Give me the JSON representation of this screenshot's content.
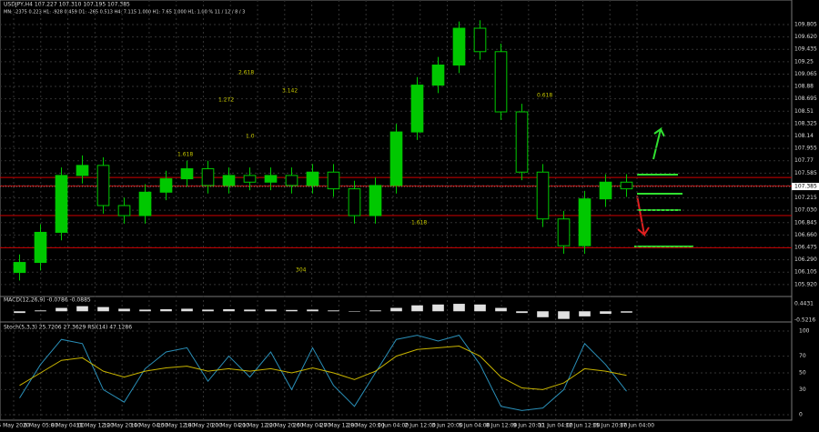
{
  "chart_data": [
    {
      "type": "candlestick",
      "title": "USDJPY,H4 107.227 107.310 107.195 107.385",
      "subtitle": "MN: -2375 0.223 H1: -928 0.459 D1: -265 0.513 H4: 7.115 1.000 H1: 7.65 1.000 H1: 1.00 % 11 / 12 / 8 / 3",
      "open": [
        106.1,
        106.25,
        106.7,
        107.55,
        107.7,
        107.1,
        106.95,
        107.3,
        107.5,
        107.65,
        107.4,
        107.55,
        107.45,
        107.55,
        107.4,
        107.6,
        107.35,
        106.95,
        107.4,
        108.2,
        108.9,
        109.2,
        109.75,
        109.4,
        108.5,
        107.6,
        106.9,
        106.5,
        107.2,
        107.45
      ],
      "high": [
        106.37,
        106.82,
        107.67,
        107.85,
        107.82,
        107.22,
        107.42,
        107.62,
        107.77,
        107.77,
        107.67,
        107.67,
        107.67,
        107.67,
        107.72,
        107.72,
        107.47,
        107.52,
        108.32,
        109.02,
        109.32,
        109.85,
        109.87,
        109.52,
        108.62,
        107.72,
        107.02,
        107.32,
        107.57,
        107.57
      ],
      "low": [
        105.98,
        106.13,
        106.58,
        107.43,
        106.98,
        106.83,
        106.83,
        107.18,
        107.38,
        107.28,
        107.28,
        107.33,
        107.33,
        107.28,
        107.28,
        107.23,
        106.83,
        106.83,
        107.28,
        108.08,
        108.78,
        109.08,
        109.28,
        108.38,
        107.48,
        106.78,
        106.38,
        106.38,
        107.08,
        107.23
      ],
      "close": [
        106.25,
        106.7,
        107.55,
        107.7,
        107.1,
        106.95,
        107.3,
        107.5,
        107.65,
        107.4,
        107.55,
        107.45,
        107.55,
        107.4,
        107.6,
        107.35,
        106.95,
        107.4,
        108.2,
        108.9,
        109.2,
        109.75,
        109.4,
        108.5,
        107.6,
        106.9,
        106.5,
        107.2,
        107.45,
        107.35
      ],
      "color": "#00c800",
      "levels": [
        {
          "value": 107.52,
          "color": "#d00000"
        },
        {
          "value": 107.39,
          "color": "#d00000"
        },
        {
          "value": 106.95,
          "color": "#d00000"
        },
        {
          "value": 106.47,
          "color": "#d00000"
        }
      ],
      "last_price": {
        "value": 107.385,
        "label": "107.385"
      },
      "annotations": [
        "1.272",
        "1.618",
        "2.618",
        "3.142",
        "1.0",
        "0.618",
        "1.618",
        "304"
      ],
      "ylim": [
        105.85,
        109.9
      ],
      "yticks": [
        {
          "value": 109.805,
          "label": "109.805"
        },
        {
          "value": 109.62,
          "label": "109.620"
        },
        109.435,
        109.25,
        109.065,
        108.88,
        108.695,
        108.51,
        108.325,
        108.14,
        107.955,
        107.77,
        107.585,
        {
          "value": 107.4,
          "label": "107.400"
        },
        107.215,
        {
          "value": 107.03,
          "label": "107.030"
        },
        106.845,
        {
          "value": 106.66,
          "label": "106.660"
        },
        106.475,
        {
          "value": 106.29,
          "label": "106.290"
        },
        106.105,
        {
          "value": 105.92,
          "label": "105.920"
        }
      ],
      "x_labels": [
        "5 May 2020",
        "6 May 05:00",
        "8 May 04:00",
        "11 May 12:00",
        "12 May 20:00",
        "14 May 04:00",
        "15 May 12:00",
        "18 May 20:00",
        "20 May 04:00",
        "21 May 12:00",
        "22 May 20:00",
        "26 May 04:00",
        "27 May 12:00",
        "28 May 20:00",
        "1 Jun 04:00",
        "2 Jun 12:00",
        "3 Jun 20:00",
        "5 Jun 04:00",
        "8 Jun 12:00",
        "9 Jun 20:00",
        "11 Jun 04:00",
        "12 Jun 12:00",
        "15 Jun 20:00",
        "17 Jun 04:00"
      ],
      "grid": true
    },
    {
      "type": "bar",
      "title": "MACD(12,26,9) -0.0786 -0.0885",
      "values": [
        -0.1,
        0.05,
        0.2,
        0.3,
        0.25,
        0.15,
        0.1,
        0.12,
        0.15,
        0.1,
        0.12,
        0.1,
        0.1,
        0.08,
        0.1,
        0.05,
        -0.02,
        0.05,
        0.2,
        0.35,
        0.4,
        0.44,
        0.4,
        0.2,
        -0.1,
        -0.35,
        -0.45,
        -0.3,
        -0.15,
        -0.08
      ],
      "color": "#e0e0e0",
      "ylim": [
        -0.5216,
        0.4431
      ],
      "yticks": [
        0.4431,
        -0.5216
      ]
    },
    {
      "type": "line",
      "title": "Stoch(5,3,3) 25.7206 27.3629 RSI(14) 47.1286",
      "series": [
        {
          "name": "Stoch",
          "color": "#2a8fb8",
          "values": [
            20,
            60,
            90,
            85,
            30,
            15,
            55,
            75,
            80,
            40,
            70,
            45,
            75,
            30,
            80,
            35,
            10,
            50,
            90,
            95,
            88,
            95,
            60,
            10,
            5,
            8,
            30,
            85,
            60,
            28
          ]
        },
        {
          "name": "RSI",
          "color": "#c8b400",
          "values": [
            35,
            50,
            65,
            68,
            52,
            45,
            52,
            56,
            58,
            52,
            55,
            52,
            55,
            50,
            56,
            50,
            42,
            52,
            70,
            78,
            80,
            82,
            70,
            45,
            32,
            30,
            38,
            55,
            52,
            47
          ]
        }
      ],
      "ylim": [
        0,
        100
      ],
      "yticks": [
        100,
        70,
        50,
        30,
        0
      ]
    }
  ]
}
